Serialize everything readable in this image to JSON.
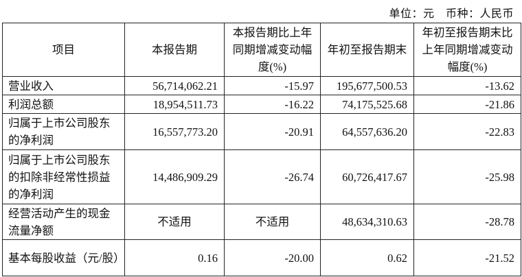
{
  "unit_line": "单位：元　币种：人民币",
  "headers": [
    "项目",
    "本报告期",
    "本报告期比上年同期增减变动幅度(%)",
    "年初至报告期末",
    "年初至报告期末比上年同期增减变动幅度(%)"
  ],
  "rows": [
    {
      "item": "营业收入",
      "current": "56,714,062.21",
      "current_change": "-15.97",
      "ytd": "195,677,500.53",
      "ytd_change": "-13.62"
    },
    {
      "item": "利润总额",
      "current": "18,954,511.73",
      "current_change": "-16.22",
      "ytd": "74,175,525.68",
      "ytd_change": "-21.86"
    },
    {
      "item": "归属于上市公司股东的净利润",
      "current": "16,557,773.20",
      "current_change": "-20.91",
      "ytd": "64,557,636.20",
      "ytd_change": "-22.83"
    },
    {
      "item": "归属于上市公司股东的扣除非经常性损益的净利润",
      "current": "14,486,909.29",
      "current_change": "-26.74",
      "ytd": "60,726,417.67",
      "ytd_change": "-25.98"
    },
    {
      "item": "经营活动产生的现金流量净额",
      "current": "不适用",
      "current_change": "不适用",
      "ytd": "48,634,310.63",
      "ytd_change": "-28.78"
    },
    {
      "item": "基本每股收益（元/股）",
      "current": "0.16",
      "current_change": "-20.00",
      "ytd": "0.62",
      "ytd_change": "-21.52"
    }
  ]
}
